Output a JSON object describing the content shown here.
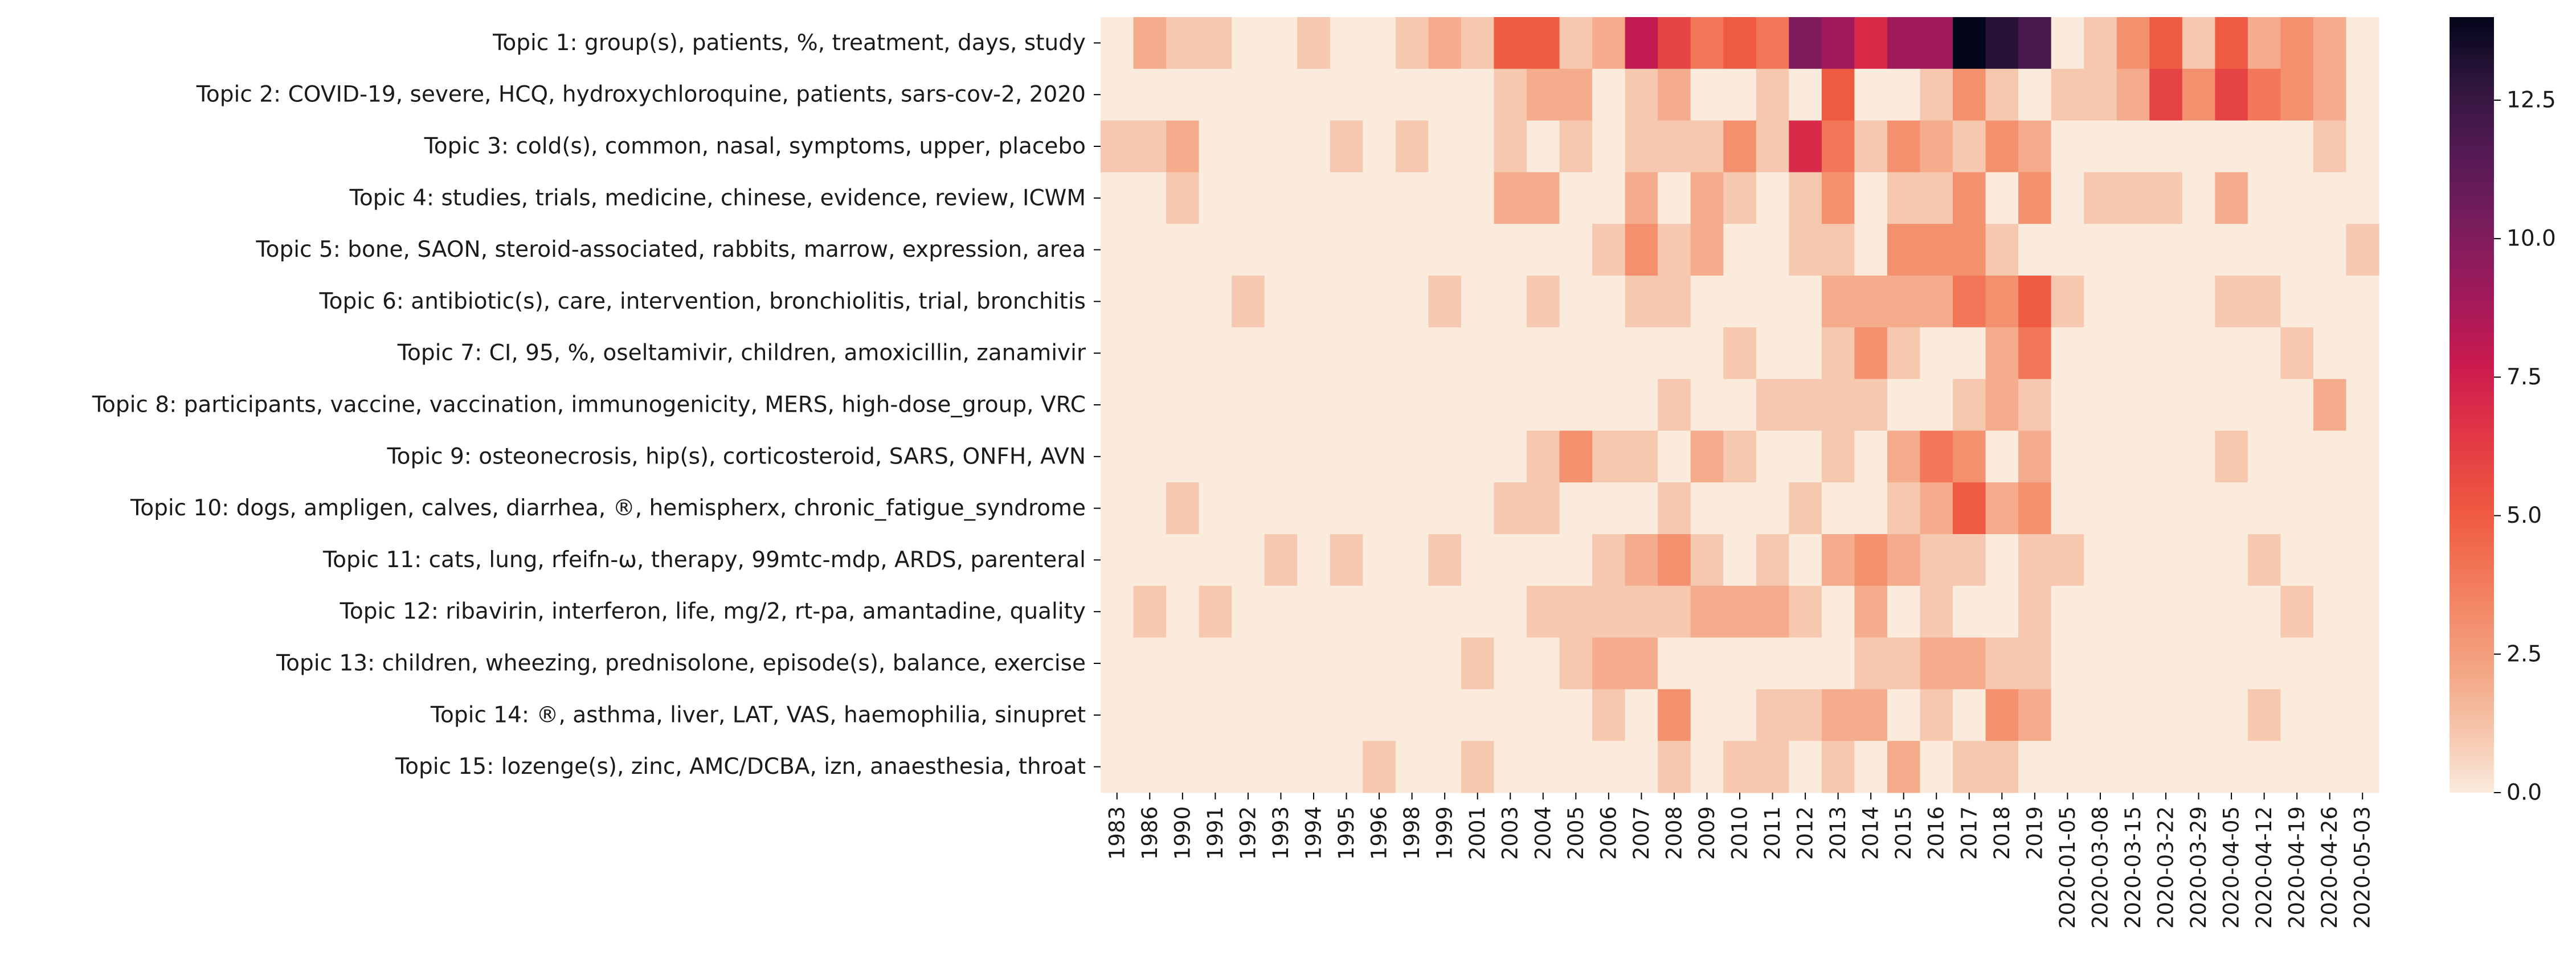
{
  "chart_data": {
    "type": "heatmap",
    "title": "",
    "xlabel": "",
    "ylabel": "",
    "x": [
      "1983",
      "1986",
      "1990",
      "1991",
      "1992",
      "1993",
      "1994",
      "1995",
      "1996",
      "1998",
      "1999",
      "2001",
      "2003",
      "2004",
      "2005",
      "2006",
      "2007",
      "2008",
      "2009",
      "2010",
      "2011",
      "2012",
      "2013",
      "2014",
      "2015",
      "2016",
      "2017",
      "2018",
      "2019",
      "2020-01-05",
      "2020-03-08",
      "2020-03-15",
      "2020-03-22",
      "2020-03-29",
      "2020-04-05",
      "2020-04-12",
      "2020-04-19",
      "2020-04-26",
      "2020-05-03"
    ],
    "y": [
      "Topic 1: group(s), patients, %, treatment, days, study",
      "Topic 2: COVID-19, severe, HCQ, hydroxychloroquine, patients, sars-cov-2, 2020",
      "Topic 3: cold(s), common, nasal, symptoms, upper, placebo",
      "Topic 4: studies, trials, medicine, chinese, evidence, review, ICWM",
      "Topic 5: bone, SAON, steroid-associated, rabbits, marrow, expression, area",
      "Topic 6: antibiotic(s), care, intervention, bronchiolitis, trial, bronchitis",
      "Topic 7: CI, 95, %, oseltamivir, children, amoxicillin, zanamivir",
      "Topic 8: participants, vaccine, vaccination, immunogenicity, MERS, high-dose_group, VRC",
      "Topic 9: osteonecrosis, hip(s), corticosteroid, SARS, ONFH, AVN",
      "Topic 10: dogs, ampligen, calves, diarrhea, ®, hemispherx, chronic_fatigue_syndrome",
      "Topic 11: cats, lung, rfeifn-ω, therapy, 99mtc-mdp, ARDS, parenteral",
      "Topic 12: ribavirin, interferon, life, mg/2, rt-pa, amantadine, quality",
      "Topic 13: children, wheezing, prednisolone, episode(s), balance, exercise",
      "Topic 14: ®, asthma, liver, LAT, VAS, haemophilia, sinupret",
      "Topic 15: lozenge(s), zinc, AMC/DCBA, izn, anaesthesia, throat"
    ],
    "values": [
      [
        0,
        2,
        1,
        1,
        0,
        0,
        1,
        0,
        0,
        1,
        2,
        1,
        5,
        5,
        1,
        2,
        8,
        6,
        4,
        5,
        4,
        10,
        9,
        7,
        9,
        9,
        14,
        13,
        12,
        0,
        1,
        3,
        5,
        1,
        5,
        2,
        3,
        2,
        0
      ],
      [
        0,
        0,
        0,
        0,
        0,
        0,
        0,
        0,
        0,
        0,
        0,
        0,
        1,
        2,
        2,
        0,
        1,
        2,
        0,
        0,
        1,
        0,
        5,
        0,
        0,
        1,
        3,
        1,
        0,
        1,
        1,
        2,
        6,
        3,
        6,
        4,
        3,
        2,
        0
      ],
      [
        1,
        1,
        2,
        0,
        0,
        0,
        0,
        1,
        0,
        1,
        0,
        0,
        1,
        0,
        1,
        0,
        1,
        1,
        1,
        3,
        1,
        7,
        4,
        1,
        3,
        2,
        1,
        3,
        2,
        0,
        0,
        0,
        0,
        0,
        0,
        0,
        0,
        1,
        0
      ],
      [
        0,
        0,
        1,
        0,
        0,
        0,
        0,
        0,
        0,
        0,
        0,
        0,
        2,
        2,
        0,
        0,
        2,
        0,
        2,
        1,
        0,
        1,
        3,
        0,
        1,
        1,
        3,
        0,
        3,
        0,
        1,
        1,
        1,
        0,
        2,
        0,
        0,
        0,
        0
      ],
      [
        0,
        0,
        0,
        0,
        0,
        0,
        0,
        0,
        0,
        0,
        0,
        0,
        0,
        0,
        0,
        1,
        3,
        1,
        2,
        0,
        0,
        1,
        1,
        0,
        3,
        3,
        3,
        1,
        0,
        0,
        0,
        0,
        0,
        0,
        0,
        0,
        0,
        0,
        1
      ],
      [
        0,
        0,
        0,
        0,
        1,
        0,
        0,
        0,
        0,
        0,
        1,
        0,
        0,
        1,
        0,
        0,
        1,
        1,
        0,
        0,
        0,
        0,
        2,
        2,
        2,
        2,
        4,
        3,
        5,
        1,
        0,
        0,
        0,
        0,
        1,
        1,
        0,
        0,
        0
      ],
      [
        0,
        0,
        0,
        0,
        0,
        0,
        0,
        0,
        0,
        0,
        0,
        0,
        0,
        0,
        0,
        0,
        0,
        0,
        0,
        1,
        0,
        0,
        1,
        3,
        1,
        0,
        0,
        2,
        4,
        0,
        0,
        0,
        0,
        0,
        0,
        0,
        1,
        0,
        0
      ],
      [
        0,
        0,
        0,
        0,
        0,
        0,
        0,
        0,
        0,
        0,
        0,
        0,
        0,
        0,
        0,
        0,
        0,
        1,
        0,
        0,
        1,
        1,
        1,
        1,
        0,
        0,
        1,
        2,
        1,
        0,
        0,
        0,
        0,
        0,
        0,
        0,
        0,
        2,
        0
      ],
      [
        0,
        0,
        0,
        0,
        0,
        0,
        0,
        0,
        0,
        0,
        0,
        0,
        0,
        1,
        3,
        1,
        1,
        0,
        2,
        1,
        0,
        0,
        1,
        0,
        2,
        4,
        3,
        0,
        2,
        0,
        0,
        0,
        0,
        0,
        1,
        0,
        0,
        0,
        0
      ],
      [
        0,
        0,
        1,
        0,
        0,
        0,
        0,
        0,
        0,
        0,
        0,
        0,
        1,
        1,
        0,
        0,
        0,
        1,
        0,
        0,
        0,
        1,
        0,
        0,
        1,
        2,
        5,
        2,
        3,
        0,
        0,
        0,
        0,
        0,
        0,
        0,
        0,
        0,
        0
      ],
      [
        0,
        0,
        0,
        0,
        0,
        1,
        0,
        1,
        0,
        0,
        1,
        0,
        0,
        0,
        0,
        1,
        2,
        3,
        1,
        0,
        1,
        0,
        2,
        3,
        2,
        1,
        1,
        0,
        1,
        1,
        0,
        0,
        0,
        0,
        0,
        1,
        0,
        0,
        0
      ],
      [
        0,
        1,
        0,
        1,
        0,
        0,
        0,
        0,
        0,
        0,
        0,
        0,
        0,
        1,
        1,
        1,
        1,
        1,
        2,
        2,
        2,
        1,
        0,
        2,
        0,
        1,
        0,
        0,
        1,
        0,
        0,
        0,
        0,
        0,
        0,
        0,
        1,
        0,
        0
      ],
      [
        0,
        0,
        0,
        0,
        0,
        0,
        0,
        0,
        0,
        0,
        0,
        1,
        0,
        0,
        1,
        2,
        2,
        0,
        0,
        0,
        0,
        0,
        0,
        1,
        1,
        2,
        2,
        1,
        1,
        0,
        0,
        0,
        0,
        0,
        0,
        0,
        0,
        0,
        0
      ],
      [
        0,
        0,
        0,
        0,
        0,
        0,
        0,
        0,
        0,
        0,
        0,
        0,
        0,
        0,
        0,
        1,
        0,
        3,
        0,
        0,
        1,
        1,
        2,
        2,
        0,
        1,
        0,
        3,
        2,
        0,
        0,
        0,
        0,
        0,
        0,
        1,
        0,
        0,
        0
      ],
      [
        0,
        0,
        0,
        0,
        0,
        0,
        0,
        0,
        1,
        0,
        0,
        1,
        0,
        0,
        0,
        0,
        0,
        1,
        0,
        1,
        1,
        0,
        1,
        0,
        2,
        0,
        1,
        1,
        0,
        0,
        0,
        0,
        0,
        0,
        0,
        0,
        0,
        0,
        0
      ]
    ],
    "colorbar": {
      "min": 0.0,
      "max": 14,
      "ticks": [
        0.0,
        2.5,
        5.0,
        7.5,
        10.0,
        12.5
      ],
      "tick_labels": [
        "0.0",
        "2.5",
        "5.0",
        "7.5",
        "10.0",
        "12.5"
      ]
    },
    "colormap": "rocket_r",
    "grid": false
  }
}
